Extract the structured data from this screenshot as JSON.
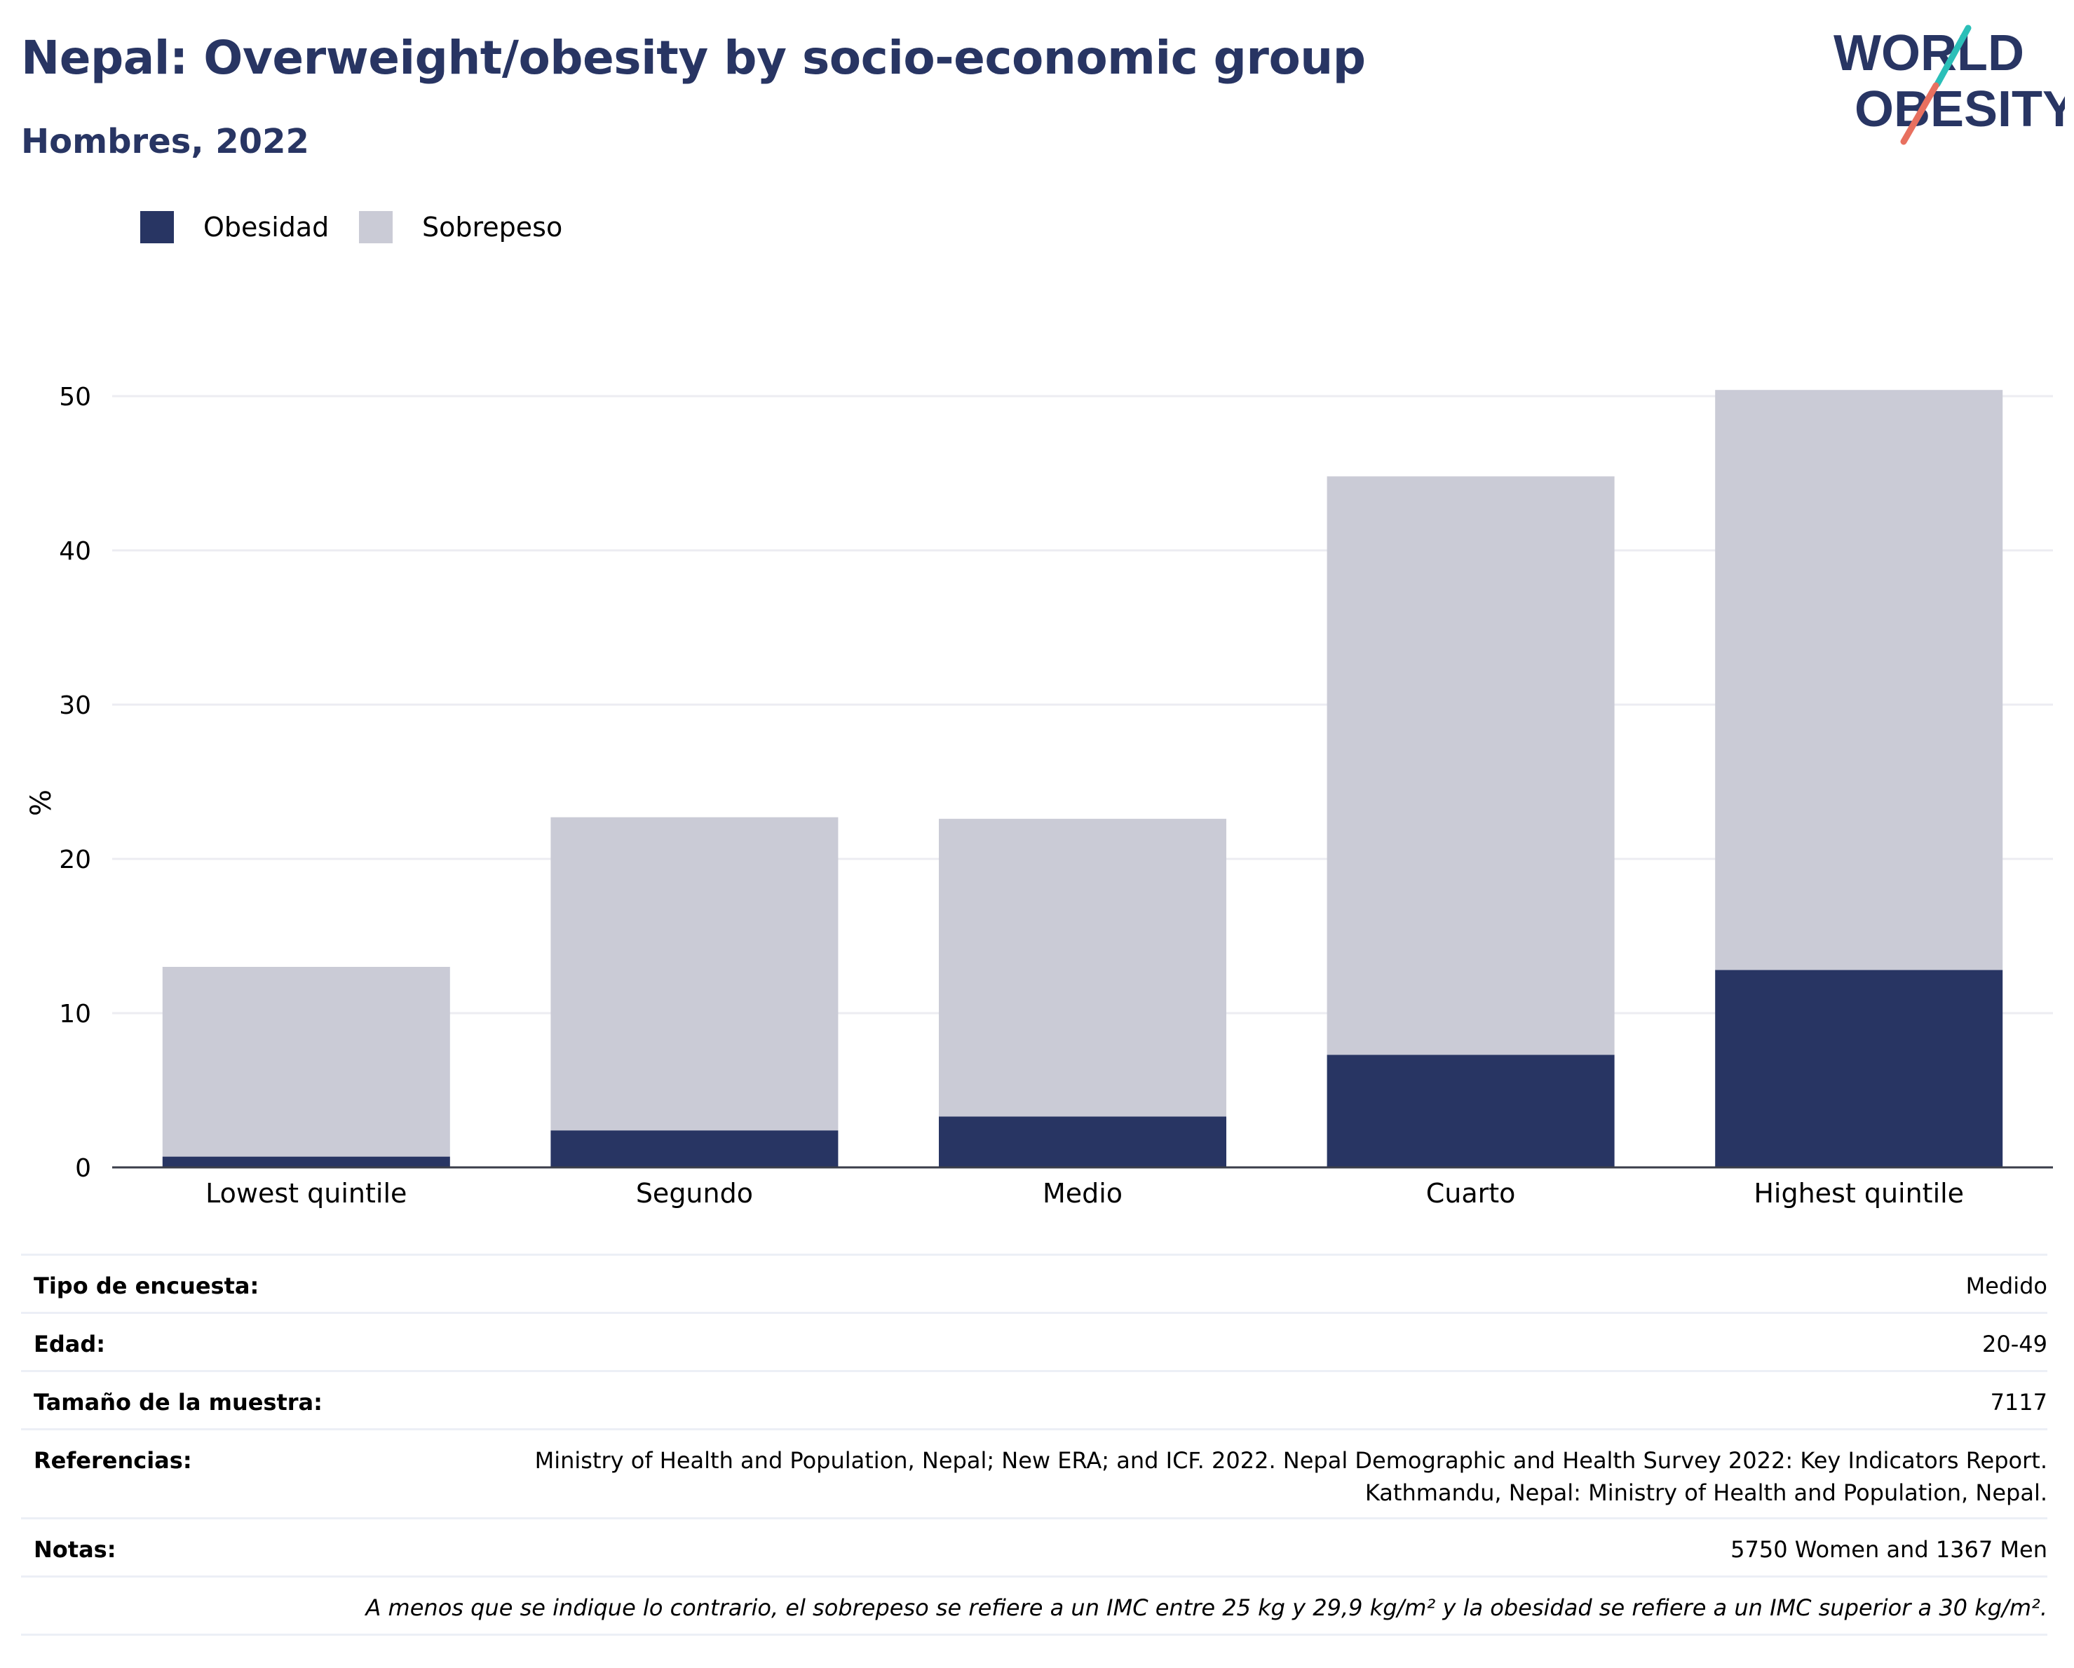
{
  "header": {
    "title": "Nepal: Overweight/obesity by socio-economic group",
    "subtitle": "Hombres, 2022"
  },
  "logo": {
    "line1": "WORLD",
    "line2": "OBESITY"
  },
  "colors": {
    "obesity": "#283563",
    "overweight": "#cacbd6",
    "text_dark": "#283563",
    "logo_teal": "#2bbfb8",
    "logo_coral": "#e8705f",
    "grid": "#ececf2"
  },
  "legend": [
    {
      "label": "Obesidad",
      "color": "#283563"
    },
    {
      "label": "Sobrepeso",
      "color": "#cacbd6"
    }
  ],
  "chart_data": {
    "type": "bar",
    "stacked": true,
    "categories": [
      "Lowest quintile",
      "Segundo",
      "Medio",
      "Cuarto",
      "Highest quintile"
    ],
    "series": [
      {
        "name": "Obesidad",
        "values": [
          0.7,
          2.4,
          3.3,
          7.3,
          12.8
        ]
      },
      {
        "name": "Sobrepeso",
        "values": [
          12.3,
          20.3,
          19.3,
          37.5,
          37.6
        ]
      }
    ],
    "ylabel": "%",
    "ylim": [
      0,
      55
    ],
    "yticks": [
      0,
      10,
      20,
      30,
      40,
      50
    ],
    "grid": true
  },
  "info": {
    "survey_type": {
      "label": "Tipo de encuesta:",
      "value": "Medido"
    },
    "age": {
      "label": "Edad:",
      "value": "20-49"
    },
    "sample_size": {
      "label": "Tamaño de la muestra:",
      "value": "7117"
    },
    "references": {
      "label": "Referencias:",
      "line1": "Ministry of Health and Population, Nepal; New ERA; and ICF. 2022. Nepal Demographic and Health Survey 2022: Key Indicators Report.",
      "line2": "Kathmandu, Nepal: Ministry of Health and Population, Nepal."
    },
    "notes": {
      "label": "Notas:",
      "value": "5750 Women and 1367 Men"
    },
    "footnote": "A menos que se indique lo contrario, el sobrepeso se refiere a un IMC entre 25 kg y 29,9 kg/m² y la obesidad se refiere a un IMC superior a 30 kg/m²."
  }
}
